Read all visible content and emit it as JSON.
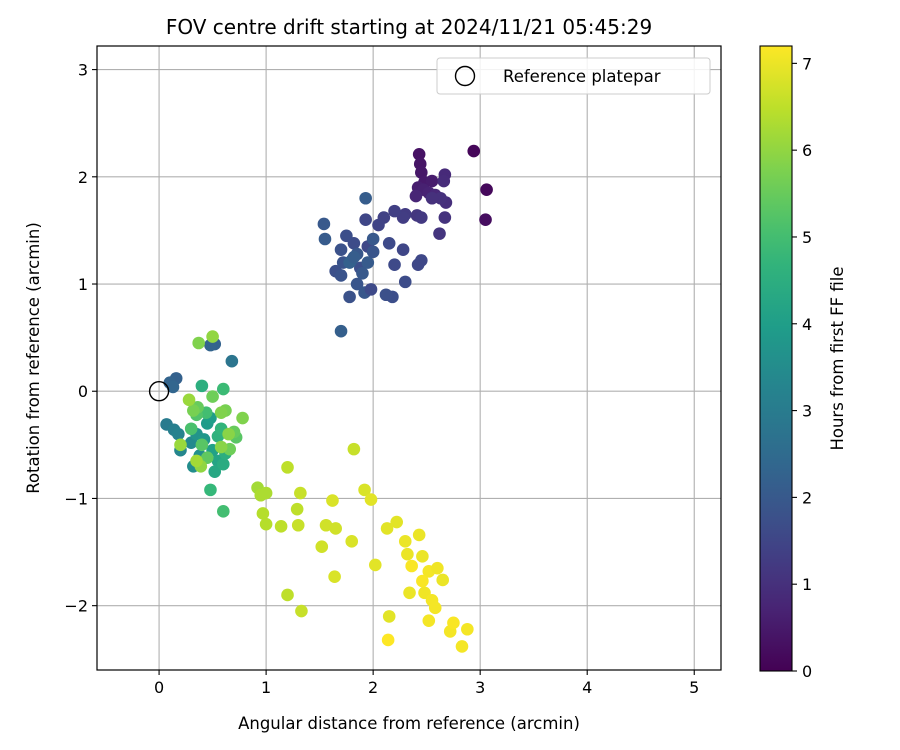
{
  "chart_data": {
    "type": "scatter",
    "title": "FOV centre drift starting at 2024/11/21 05:45:29",
    "xlabel": "Angular distance from reference (arcmin)",
    "ylabel": "Rotation from reference (arcmin)",
    "xlim": [
      -0.58,
      5.25
    ],
    "ylim": [
      -2.6,
      3.22
    ],
    "xticks": [
      0,
      1,
      2,
      3,
      4,
      5
    ],
    "xtick_labels": [
      "0",
      "1",
      "2",
      "3",
      "4",
      "5"
    ],
    "yticks": [
      -2,
      -1,
      0,
      1,
      2,
      3
    ],
    "ytick_labels": [
      "−2",
      "−1",
      "0",
      "1",
      "2",
      "3"
    ],
    "grid": true,
    "legend": {
      "placement": "top-right",
      "entries": [
        "Reference platepar"
      ]
    },
    "colorbar": {
      "label": "Hours from first FF file",
      "colormap": "viridis",
      "range": [
        0,
        7.2
      ],
      "ticks": [
        0,
        1,
        2,
        3,
        4,
        5,
        6,
        7
      ],
      "tick_labels": [
        "0",
        "1",
        "2",
        "3",
        "4",
        "5",
        "6",
        "7"
      ]
    },
    "reference_point": {
      "x": 0,
      "y": 0,
      "label": "Reference platepar"
    },
    "points": [
      [
        2.94,
        2.24,
        0.1
      ],
      [
        3.06,
        1.88,
        0.15
      ],
      [
        3.05,
        1.6,
        0.25
      ],
      [
        2.43,
        2.21,
        0.35
      ],
      [
        2.44,
        2.12,
        0.4
      ],
      [
        2.45,
        2.04,
        0.45
      ],
      [
        2.48,
        1.95,
        0.5
      ],
      [
        2.55,
        1.96,
        0.55
      ],
      [
        2.42,
        1.9,
        0.6
      ],
      [
        2.47,
        1.88,
        0.65
      ],
      [
        2.52,
        1.85,
        0.7
      ],
      [
        2.4,
        1.82,
        0.75
      ],
      [
        2.58,
        1.83,
        0.8
      ],
      [
        2.67,
        2.02,
        0.85
      ],
      [
        2.66,
        1.96,
        0.9
      ],
      [
        2.68,
        1.76,
        0.95
      ],
      [
        2.63,
        1.8,
        1.0
      ],
      [
        2.55,
        1.8,
        1.0
      ],
      [
        2.67,
        1.62,
        1.05
      ],
      [
        2.62,
        1.47,
        1.1
      ],
      [
        2.41,
        1.64,
        1.15
      ],
      [
        2.45,
        1.62,
        1.2
      ],
      [
        2.3,
        1.65,
        1.25
      ],
      [
        2.28,
        1.62,
        1.3
      ],
      [
        2.2,
        1.68,
        1.35
      ],
      [
        2.1,
        1.62,
        1.4
      ],
      [
        2.05,
        1.55,
        1.45
      ],
      [
        2.28,
        1.32,
        1.5
      ],
      [
        2.42,
        1.18,
        1.55
      ],
      [
        2.45,
        1.22,
        1.55
      ],
      [
        2.15,
        1.38,
        1.6
      ],
      [
        2.3,
        1.02,
        1.65
      ],
      [
        2.18,
        0.88,
        1.7
      ],
      [
        2.12,
        0.9,
        1.75
      ],
      [
        2.2,
        1.18,
        1.6
      ],
      [
        1.82,
        1.38,
        1.65
      ],
      [
        1.93,
        1.6,
        1.5
      ],
      [
        1.95,
        1.35,
        1.55
      ],
      [
        1.75,
        1.45,
        1.7
      ],
      [
        1.7,
        1.32,
        1.8
      ],
      [
        1.65,
        1.12,
        1.75
      ],
      [
        1.7,
        1.08,
        1.85
      ],
      [
        1.78,
        0.88,
        1.8
      ],
      [
        1.85,
        1.0,
        1.9
      ],
      [
        1.92,
        0.92,
        1.95
      ],
      [
        1.98,
        0.95,
        1.6
      ],
      [
        1.88,
        1.15,
        1.7
      ],
      [
        1.72,
        1.2,
        1.85
      ],
      [
        1.8,
        1.22,
        1.9
      ],
      [
        1.85,
        1.28,
        1.95
      ],
      [
        1.9,
        1.1,
        2.0
      ],
      [
        1.95,
        1.2,
        2.05
      ],
      [
        2.0,
        1.3,
        1.9
      ],
      [
        2.0,
        1.42,
        2.0
      ],
      [
        1.54,
        1.56,
        2.0
      ],
      [
        1.55,
        1.42,
        2.05
      ],
      [
        1.93,
        1.8,
        2.1
      ],
      [
        1.7,
        0.56,
        2.15
      ],
      [
        1.78,
        1.2,
        2.2
      ],
      [
        1.82,
        1.25,
        2.1
      ],
      [
        0.16,
        0.12,
        2.2
      ],
      [
        0.1,
        0.08,
        2.3
      ],
      [
        0.13,
        0.04,
        2.35
      ],
      [
        0.52,
        0.44,
        2.25
      ],
      [
        0.48,
        0.43,
        2.3
      ],
      [
        0.68,
        0.28,
        2.8
      ],
      [
        0.07,
        -0.31,
        3.0
      ],
      [
        0.14,
        -0.36,
        3.1
      ],
      [
        0.18,
        -0.4,
        3.2
      ],
      [
        0.2,
        -0.55,
        3.3
      ],
      [
        0.3,
        -0.48,
        3.4
      ],
      [
        0.32,
        -0.7,
        3.5
      ],
      [
        0.38,
        -0.6,
        3.6
      ],
      [
        0.35,
        -0.4,
        3.7
      ],
      [
        0.42,
        -0.45,
        3.8
      ],
      [
        0.45,
        -0.3,
        3.9
      ],
      [
        0.48,
        -0.25,
        4.0
      ],
      [
        0.5,
        -0.55,
        4.1
      ],
      [
        0.55,
        -0.65,
        4.2
      ],
      [
        0.52,
        -0.75,
        4.3
      ],
      [
        0.6,
        -0.68,
        4.4
      ],
      [
        0.62,
        -0.58,
        4.5
      ],
      [
        0.4,
        0.05,
        4.5
      ],
      [
        0.55,
        -0.42,
        4.6
      ],
      [
        0.58,
        -0.35,
        4.7
      ],
      [
        0.48,
        -0.92,
        4.8
      ],
      [
        0.6,
        0.02,
        4.9
      ],
      [
        0.44,
        -0.2,
        5.0
      ],
      [
        0.3,
        -0.35,
        5.1
      ],
      [
        0.35,
        -0.22,
        5.2
      ],
      [
        0.4,
        -0.5,
        5.3
      ],
      [
        0.45,
        -0.62,
        5.4
      ],
      [
        0.6,
        -1.12,
        5.0
      ],
      [
        0.72,
        -0.43,
        5.3
      ],
      [
        0.7,
        -0.38,
        5.5
      ],
      [
        0.66,
        -0.54,
        5.6
      ],
      [
        0.62,
        -0.18,
        5.7
      ],
      [
        0.58,
        -0.2,
        5.8
      ],
      [
        0.65,
        -0.4,
        5.9
      ],
      [
        0.5,
        -0.05,
        5.6
      ],
      [
        0.36,
        -0.15,
        5.5
      ],
      [
        0.32,
        -0.18,
        5.7
      ],
      [
        0.78,
        -0.25,
        5.8
      ],
      [
        0.58,
        -0.52,
        5.9
      ],
      [
        0.39,
        -0.7,
        6.0
      ],
      [
        0.37,
        0.45,
        5.8
      ],
      [
        0.5,
        0.51,
        6.0
      ],
      [
        0.2,
        -0.5,
        6.1
      ],
      [
        0.28,
        -0.08,
        6.1
      ],
      [
        0.35,
        -0.65,
        6.2
      ],
      [
        0.92,
        -0.9,
        6.2
      ],
      [
        0.95,
        -0.97,
        6.3
      ],
      [
        1.0,
        -0.95,
        6.3
      ],
      [
        0.97,
        -1.14,
        6.4
      ],
      [
        1.0,
        -1.24,
        6.4
      ],
      [
        1.2,
        -0.71,
        6.5
      ],
      [
        1.14,
        -1.26,
        6.5
      ],
      [
        1.29,
        -1.1,
        6.5
      ],
      [
        1.32,
        -0.95,
        6.6
      ],
      [
        1.3,
        -1.25,
        6.6
      ],
      [
        1.2,
        -1.9,
        6.5
      ],
      [
        1.33,
        -2.05,
        6.6
      ],
      [
        1.52,
        -1.45,
        6.7
      ],
      [
        1.56,
        -1.25,
        6.7
      ],
      [
        1.65,
        -1.28,
        6.7
      ],
      [
        1.62,
        -1.02,
        6.8
      ],
      [
        1.64,
        -1.73,
        6.8
      ],
      [
        1.82,
        -0.54,
        6.6
      ],
      [
        1.8,
        -1.4,
        6.8
      ],
      [
        1.92,
        -0.92,
        6.8
      ],
      [
        1.98,
        -1.01,
        6.9
      ],
      [
        2.02,
        -1.62,
        6.9
      ],
      [
        2.13,
        -1.28,
        6.9
      ],
      [
        2.22,
        -1.22,
        6.9
      ],
      [
        2.15,
        -2.1,
        6.9
      ],
      [
        2.3,
        -1.4,
        7.0
      ],
      [
        2.32,
        -1.52,
        7.0
      ],
      [
        2.34,
        -1.88,
        7.0
      ],
      [
        2.43,
        -1.34,
        7.0
      ],
      [
        2.46,
        -1.54,
        7.0
      ],
      [
        2.48,
        -1.88,
        7.05
      ],
      [
        2.52,
        -1.68,
        7.1
      ],
      [
        2.55,
        -1.95,
        7.1
      ],
      [
        2.58,
        -2.02,
        7.1
      ],
      [
        2.6,
        -1.65,
        7.05
      ],
      [
        2.65,
        -1.76,
        7.0
      ],
      [
        2.52,
        -2.14,
        7.1
      ],
      [
        2.46,
        -1.77,
        7.15
      ],
      [
        2.36,
        -1.63,
        7.15
      ],
      [
        2.72,
        -2.24,
        7.1
      ],
      [
        2.75,
        -2.16,
        7.15
      ],
      [
        2.83,
        -2.38,
        7.1
      ],
      [
        2.88,
        -2.22,
        7.1
      ],
      [
        2.14,
        -2.32,
        7.2
      ]
    ]
  }
}
